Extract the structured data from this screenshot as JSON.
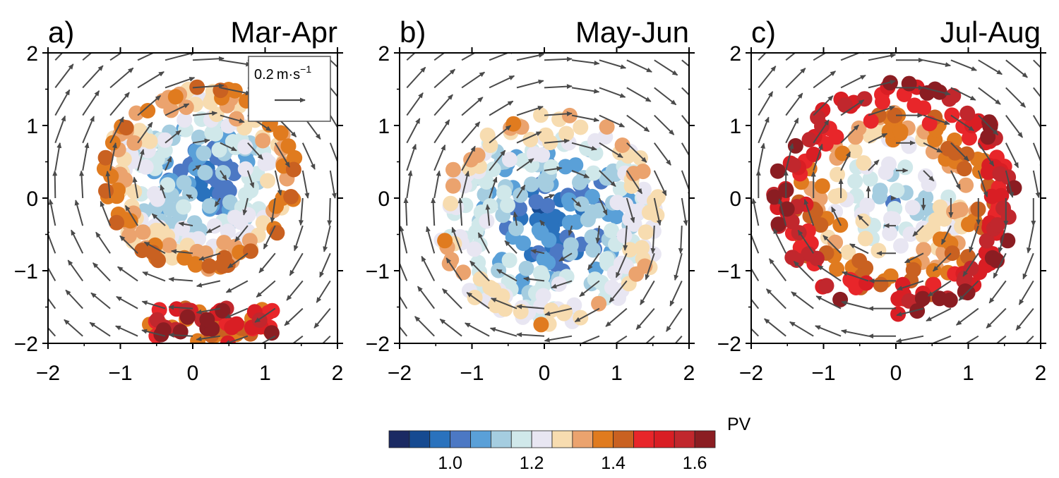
{
  "chart_data": [
    {
      "type": "scatter",
      "panel_label": "a)",
      "title": "Mar-Apr",
      "xlim": [
        -2,
        2
      ],
      "ylim": [
        -2,
        2
      ],
      "xticks": [
        "−2",
        "−1",
        "0",
        "1",
        "2"
      ],
      "yticks": [
        "−2",
        "−1",
        "0",
        "1",
        "2"
      ],
      "vector_key": {
        "value": "0.2",
        "unit_main": "m·s",
        "unit_exp": "−1"
      },
      "vortex": {
        "cx": 0.1,
        "cy": 0.3,
        "radius": 1.35,
        "core_pv": 1.02,
        "rim_pv": 1.38,
        "lobe": {
          "cx": 0.3,
          "cy": -1.75,
          "pv": 1.5
        },
        "flow": "anticyclonic"
      }
    },
    {
      "type": "scatter",
      "panel_label": "b)",
      "title": "May-Jun",
      "xlim": [
        -2,
        2
      ],
      "ylim": [
        -2,
        2
      ],
      "xticks": [
        "−2",
        "−1",
        "0",
        "1",
        "2"
      ],
      "yticks": [
        "−2",
        "−1",
        "0",
        "1",
        "2"
      ],
      "vortex": {
        "cx": 0.1,
        "cy": -0.3,
        "radius": 1.55,
        "core_pv": 1.0,
        "rim_pv": 1.3,
        "flow": "anticyclonic"
      }
    },
    {
      "type": "scatter",
      "panel_label": "c)",
      "title": "Jul-Aug",
      "xlim": [
        -2,
        2
      ],
      "ylim": [
        -2,
        2
      ],
      "xticks": [
        "−2",
        "−1",
        "0",
        "1",
        "2"
      ],
      "yticks": [
        "−2",
        "−1",
        "0",
        "1",
        "2"
      ],
      "vortex": {
        "cx": 0.0,
        "cy": 0.0,
        "radius": 1.7,
        "core_pv": 1.12,
        "rim_pv": 1.62,
        "flow": "anticyclonic"
      }
    }
  ],
  "colorbar": {
    "label": "PV",
    "tick_labels": [
      "1.0",
      "1.2",
      "1.4",
      "1.6"
    ],
    "tick_values": [
      1.0,
      1.2,
      1.4,
      1.6
    ],
    "range": [
      0.85,
      1.65
    ],
    "colors": [
      "#1b2a63",
      "#164a91",
      "#2a72bd",
      "#4c78c4",
      "#5aa0d8",
      "#a5cde0",
      "#d0e8ea",
      "#e8e6f2",
      "#f7dcb0",
      "#eba36e",
      "#e07b1f",
      "#c96121",
      "#e8262a",
      "#d91e24",
      "#c1272d",
      "#8b1d22"
    ]
  }
}
